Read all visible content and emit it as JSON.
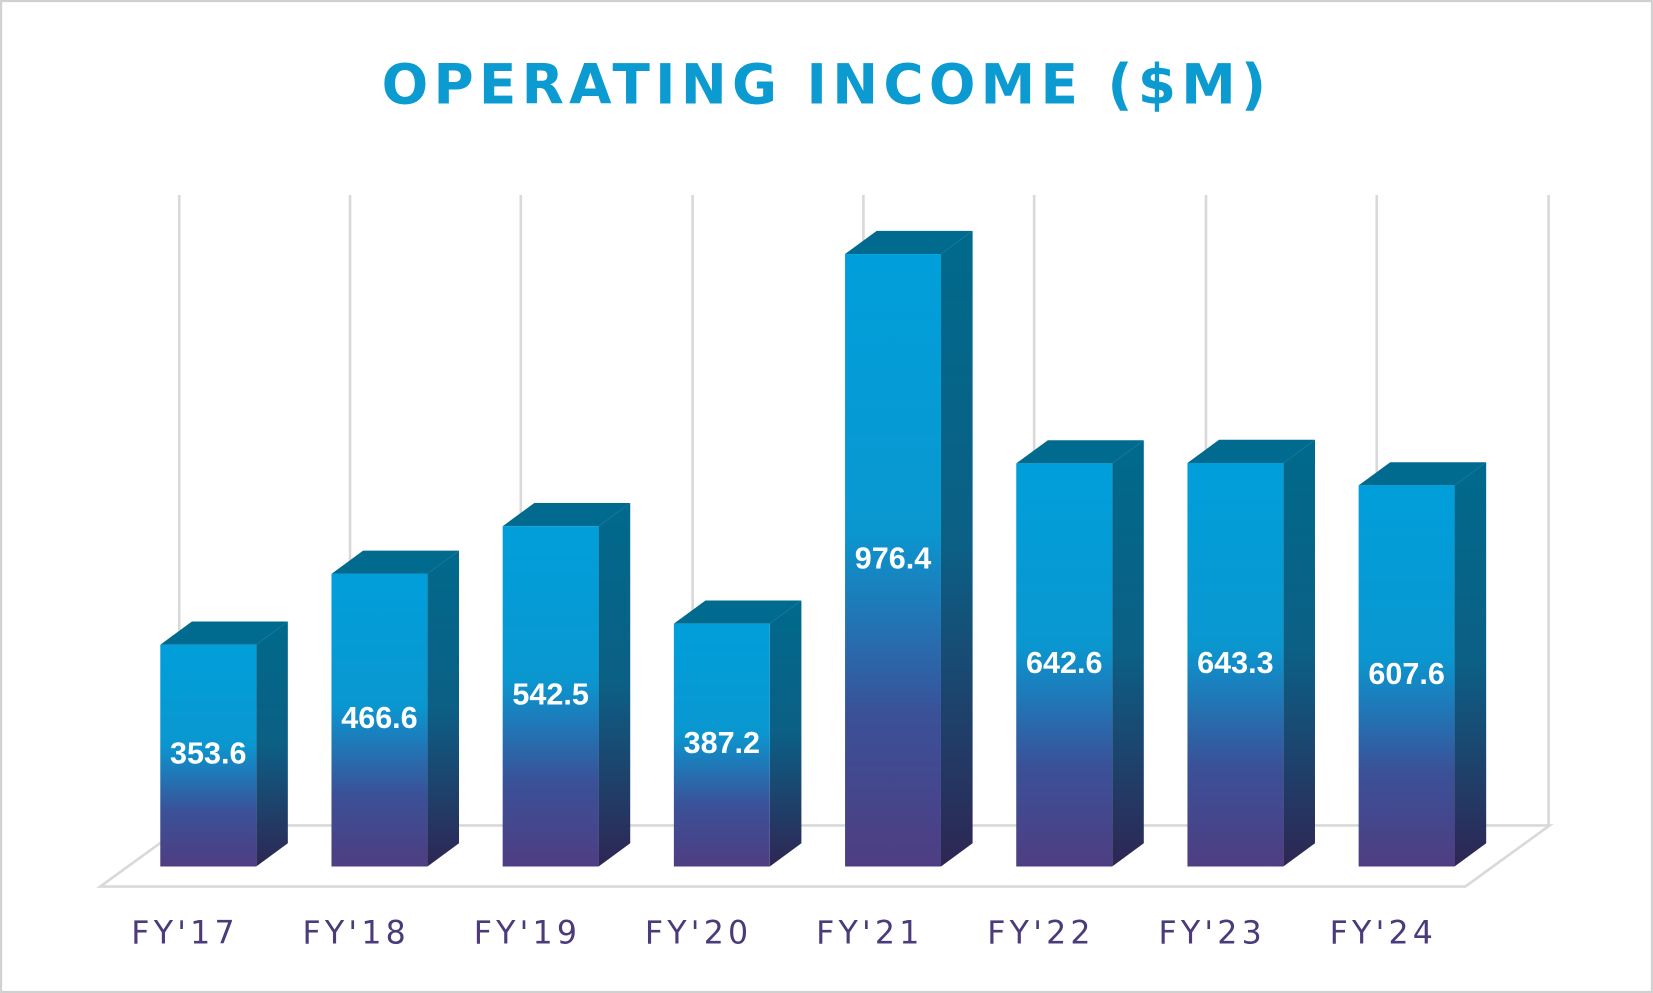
{
  "chart_data": {
    "type": "bar3d",
    "title": "OPERATING INCOME ($M)",
    "categories": [
      "FY'17",
      "FY'18",
      "FY'19",
      "FY'20",
      "FY'21",
      "FY'22",
      "FY'23",
      "FY'24"
    ],
    "values": [
      353.6,
      466.6,
      542.5,
      387.2,
      976.4,
      642.6,
      643.3,
      607.6
    ],
    "color": "#009fdb"
  }
}
